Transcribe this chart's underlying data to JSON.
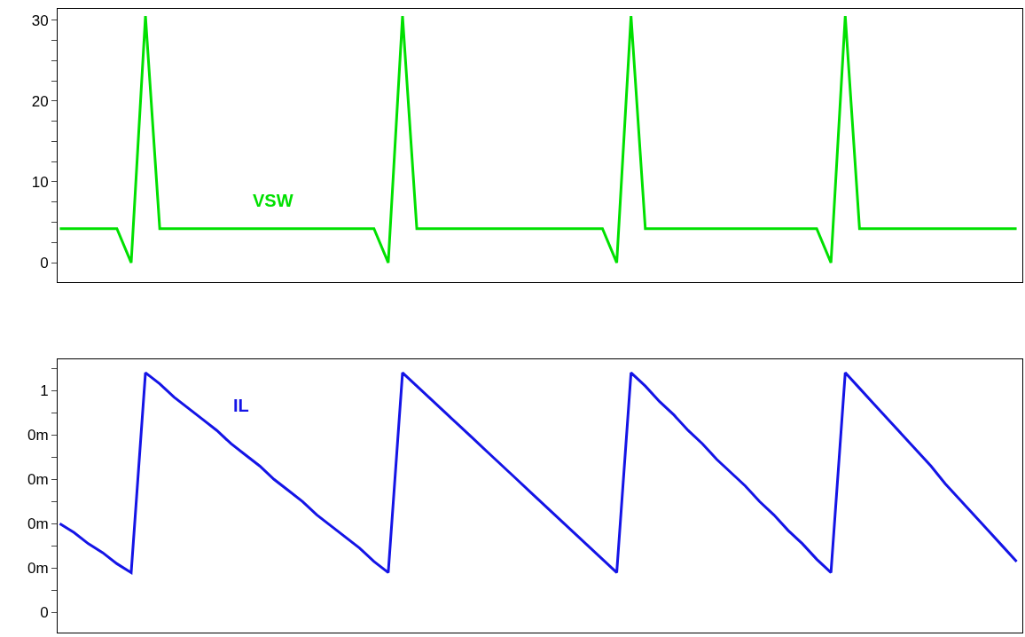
{
  "chart_data": [
    {
      "type": "line",
      "categories": [
        null,
        null,
        null,
        null,
        null,
        null,
        null,
        null,
        null,
        null,
        null,
        null,
        null,
        null,
        null,
        null,
        null,
        null,
        null,
        null,
        null,
        null,
        null,
        null,
        null,
        null,
        null,
        null,
        null,
        null,
        null,
        null,
        null,
        null,
        null,
        null,
        null,
        null,
        null,
        null,
        null,
        null,
        null,
        null,
        null,
        null,
        null,
        null,
        null,
        null,
        null,
        null,
        null,
        null,
        null,
        null,
        null,
        null,
        null,
        null,
        null,
        null,
        null,
        null,
        null,
        null,
        null,
        null
      ],
      "series": [
        {
          "name": "VSW",
          "color": "#00e000",
          "values": [
            4.2,
            4.2,
            4.2,
            4.2,
            4.2,
            0,
            30.5,
            4.2,
            4.2,
            4.2,
            4.2,
            4.2,
            4.2,
            4.2,
            4.2,
            4.2,
            4.2,
            4.2,
            4.2,
            4.2,
            4.2,
            4.2,
            4.2,
            0,
            30.5,
            4.2,
            4.2,
            4.2,
            4.2,
            4.2,
            4.2,
            4.2,
            4.2,
            4.2,
            4.2,
            4.2,
            4.2,
            4.2,
            4.2,
            0,
            30.5,
            4.2,
            4.2,
            4.2,
            4.2,
            4.2,
            4.2,
            4.2,
            4.2,
            4.2,
            4.2,
            4.2,
            4.2,
            4.2,
            0,
            30.5,
            4.2,
            4.2,
            4.2,
            4.2,
            4.2,
            4.2,
            4.2,
            4.2,
            4.2,
            4.2,
            4.2,
            4.2
          ]
        }
      ],
      "ylim": [
        -2.4,
        31.4
      ],
      "yticks": [
        0,
        {
          "value": 2.5,
          "label": null
        },
        {
          "value": 5,
          "label": null
        },
        {
          "value": 7.5,
          "label": null
        },
        10,
        {
          "value": 12.5,
          "label": null
        },
        {
          "value": 15,
          "label": null
        },
        {
          "value": 17.5,
          "label": null
        },
        20,
        {
          "value": 22.5,
          "label": null
        },
        {
          "value": 25,
          "label": null
        },
        {
          "value": 27.5,
          "label": null
        },
        30
      ],
      "tick_labels": "y",
      "marker": "none",
      "line_style": "solid"
    },
    {
      "type": "line",
      "categories": [
        null,
        null,
        null,
        null,
        null,
        null,
        null,
        null,
        null,
        null,
        null,
        null,
        null,
        null,
        null,
        null,
        null,
        null,
        null,
        null,
        null,
        null,
        null,
        null,
        null,
        null,
        null,
        null,
        null,
        null,
        null,
        null,
        null,
        null,
        null,
        null,
        null,
        null,
        null,
        null,
        null,
        null,
        null,
        null,
        null,
        null,
        null,
        null,
        null,
        null,
        null,
        null,
        null,
        null,
        null,
        null,
        null,
        null,
        null,
        null,
        null,
        null,
        null,
        null,
        null,
        null,
        null,
        null
      ],
      "series": [
        {
          "name": "IL",
          "color": "#1414e6",
          "values": [
            0.4,
            0.36,
            0.31,
            0.27,
            0.22,
            0.18,
            1.08,
            1.03,
            0.97,
            0.92,
            0.87,
            0.82,
            0.76,
            0.71,
            0.66,
            0.6,
            0.55,
            0.5,
            0.44,
            0.39,
            0.34,
            0.29,
            0.23,
            0.18,
            1.08,
            1.02,
            0.96,
            0.9,
            0.84,
            0.78,
            0.72,
            0.66,
            0.6,
            0.54,
            0.48,
            0.42,
            0.36,
            0.3,
            0.24,
            0.18,
            1.08,
            1.02,
            0.95,
            0.89,
            0.82,
            0.76,
            0.69,
            0.63,
            0.57,
            0.5,
            0.44,
            0.37,
            0.31,
            0.24,
            0.18,
            1.08,
            1.01,
            0.94,
            0.87,
            0.8,
            0.73,
            0.66,
            0.58,
            0.51,
            0.44,
            0.37,
            0.3,
            0.23
          ]
        }
      ],
      "ylim": [
        -0.09,
        1.14
      ],
      "yticks": [
        0,
        {
          "value": 0.1,
          "label": null
        },
        {
          "value": 0.2,
          "label": "0m"
        },
        {
          "value": 0.3,
          "label": null
        },
        {
          "value": 0.4,
          "label": "0m"
        },
        {
          "value": 0.5,
          "label": null
        },
        {
          "value": 0.6,
          "label": "0m"
        },
        {
          "value": 0.7,
          "label": null
        },
        {
          "value": 0.8,
          "label": "0m"
        },
        {
          "value": 0.9,
          "label": null
        },
        1,
        {
          "value": 1.1,
          "label": null
        }
      ],
      "tick_labels": "y",
      "marker": "none",
      "line_style": "solid"
    }
  ]
}
